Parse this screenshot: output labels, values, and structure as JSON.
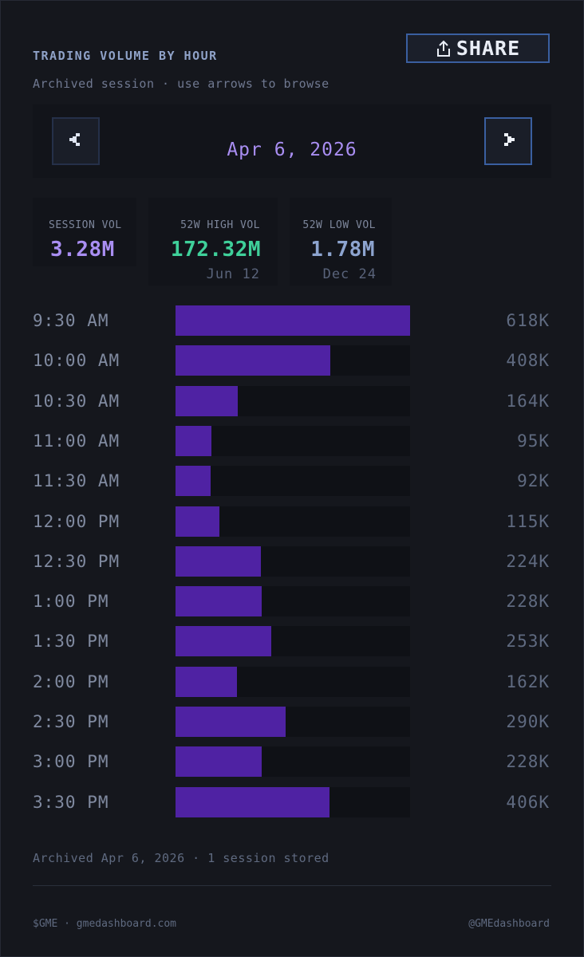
{
  "header": {
    "title": "TRADING VOLUME BY HOUR",
    "subtitle": "Archived session · use arrows to browse",
    "share_label": "SHARE"
  },
  "date_nav": {
    "date": "Apr 6, 2026",
    "prev_icon": "chevron-left-icon",
    "next_icon": "chevron-right-icon"
  },
  "stats": {
    "session": {
      "label": "SESSION VOL",
      "value": "3.28M",
      "color": "#a98ef2"
    },
    "high": {
      "label": "52W HIGH VOL",
      "value": "172.32M",
      "date": "Jun 12",
      "color": "#3fd09a"
    },
    "low": {
      "label": "52W LOW VOL",
      "value": "1.78M",
      "date": "Dec 24",
      "color": "#8da4cf"
    }
  },
  "chart_data": {
    "type": "bar",
    "orientation": "horizontal",
    "title": "Trading volume by hour",
    "max": 618,
    "unit": "K",
    "bar_color": "#4f22a3",
    "categories": [
      "9:30 AM",
      "10:00 AM",
      "10:30 AM",
      "11:00 AM",
      "11:30 AM",
      "12:00 PM",
      "12:30 PM",
      "1:00 PM",
      "1:30 PM",
      "2:00 PM",
      "2:30 PM",
      "3:00 PM",
      "3:30 PM"
    ],
    "values": [
      618,
      408,
      164,
      95,
      92,
      115,
      224,
      228,
      253,
      162,
      290,
      228,
      406
    ],
    "value_labels": [
      "618K",
      "408K",
      "164K",
      "95K",
      "92K",
      "115K",
      "224K",
      "228K",
      "253K",
      "162K",
      "290K",
      "228K",
      "406K"
    ]
  },
  "footer": {
    "archived_note": "Archived Apr 6, 2026 · 1 session stored",
    "left": "$GME · gmedashboard.com",
    "right": "@GMEdashboard"
  }
}
